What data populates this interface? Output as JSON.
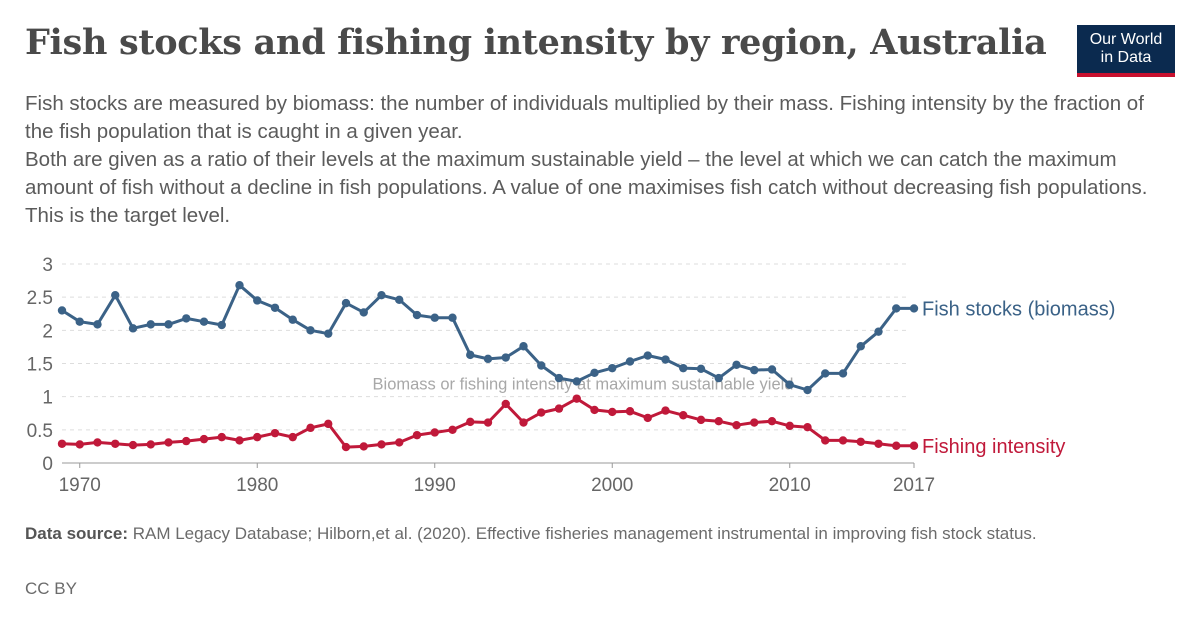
{
  "header": {
    "title": "Fish stocks and fishing intensity by region, Australia",
    "subtitle_1": "Fish stocks are measured by biomass: the number of individuals multiplied by their mass. Fishing intensity by the fraction of the fish population that is caught in a given year.",
    "subtitle_2": "Both are given as a ratio of their levels at the maximum sustainable yield – the level at which we can catch the maximum amount of fish without a decline in fish populations. A value of one maximises fish catch without decreasing fish populations. This is the target level."
  },
  "logo": {
    "line1": "Our World",
    "line2": "in Data",
    "bg": "#0b2a4f",
    "accent": "#c8102e"
  },
  "footer": {
    "source_label": "Data source:",
    "source_text": "RAM Legacy Database; Hilborn,et al. (2020). Effective fisheries management instrumental in improving fish stock status.",
    "license": "CC BY"
  },
  "chart_data": {
    "type": "line",
    "title": "Fish stocks and fishing intensity by region, Australia",
    "xlim": [
      1969,
      2017
    ],
    "ylim": [
      0,
      3
    ],
    "x_ticks": [
      1970,
      1980,
      1990,
      2000,
      2010,
      2017
    ],
    "y_ticks": [
      0,
      0.5,
      1,
      1.5,
      2,
      2.5,
      3
    ],
    "y_tick_labels": [
      "0",
      "0.5",
      "1",
      "1.5",
      "2",
      "2.5",
      "3"
    ],
    "grid": true,
    "reference_line": {
      "y": 1,
      "label": "Biomass or fishing intensity at maximum sustainable yield"
    },
    "x": [
      1969,
      1970,
      1971,
      1972,
      1973,
      1974,
      1975,
      1976,
      1977,
      1978,
      1979,
      1980,
      1981,
      1982,
      1983,
      1984,
      1985,
      1986,
      1987,
      1988,
      1989,
      1990,
      1991,
      1992,
      1993,
      1994,
      1995,
      1996,
      1997,
      1998,
      1999,
      2000,
      2001,
      2002,
      2003,
      2004,
      2005,
      2006,
      2007,
      2008,
      2009,
      2010,
      2011,
      2012,
      2013,
      2014,
      2015,
      2016,
      2017
    ],
    "series": [
      {
        "name": "Fish stocks (biomass)",
        "color": "#3b6287",
        "values": [
          2.3,
          2.13,
          2.09,
          2.53,
          2.03,
          2.09,
          2.09,
          2.18,
          2.13,
          2.08,
          2.68,
          2.45,
          2.34,
          2.16,
          2.0,
          1.95,
          2.41,
          2.27,
          2.53,
          2.46,
          2.23,
          2.19,
          2.19,
          1.63,
          1.57,
          1.59,
          1.76,
          1.47,
          1.28,
          1.23,
          1.36,
          1.43,
          1.53,
          1.62,
          1.56,
          1.43,
          1.42,
          1.28,
          1.48,
          1.4,
          1.41,
          1.18,
          1.1,
          1.35,
          1.35,
          1.76,
          1.98,
          2.33,
          2.33
        ]
      },
      {
        "name": "Fishing intensity",
        "color": "#c0193a",
        "values": [
          0.29,
          0.28,
          0.31,
          0.29,
          0.27,
          0.28,
          0.31,
          0.33,
          0.36,
          0.39,
          0.34,
          0.39,
          0.45,
          0.39,
          0.53,
          0.59,
          0.24,
          0.25,
          0.28,
          0.31,
          0.42,
          0.46,
          0.5,
          0.62,
          0.61,
          0.89,
          0.61,
          0.76,
          0.82,
          0.97,
          0.8,
          0.77,
          0.78,
          0.68,
          0.79,
          0.72,
          0.65,
          0.63,
          0.57,
          0.61,
          0.63,
          0.56,
          0.54,
          0.34,
          0.34,
          0.32,
          0.29,
          0.26,
          0.26
        ]
      }
    ]
  }
}
